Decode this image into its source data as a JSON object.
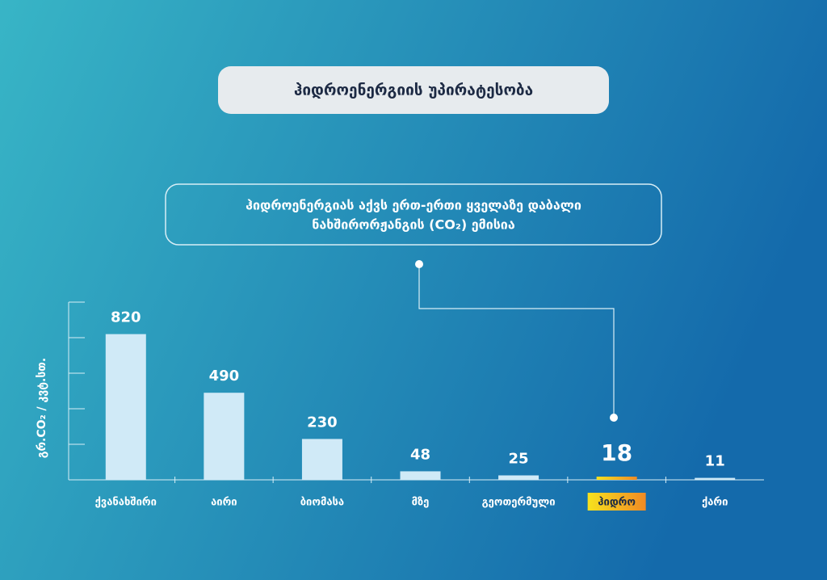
{
  "chart_data": {
    "type": "bar",
    "title": "ჰიდროენერგიის უპირატესობა",
    "callout": [
      "ჰიდროენერგიას აქვს ერთ-ერთი ყველაზე დაბალი",
      "ნახშირორჟანგის (CO₂) ემისია"
    ],
    "y_label": "გრ.CO₂ / კვტ.სთ.",
    "categories": [
      "ქვანახშირი",
      "აირი",
      "ბიომასა",
      "მზე",
      "გეოთერმული",
      "ჰიდრო",
      "ქარი"
    ],
    "values": [
      820,
      490,
      230,
      48,
      25,
      18,
      11
    ],
    "color": "#d0eaf7",
    "highlight_index": 5,
    "ylim": [
      0,
      1000
    ],
    "yticks": [
      0,
      200,
      400,
      600,
      800,
      1000
    ]
  }
}
